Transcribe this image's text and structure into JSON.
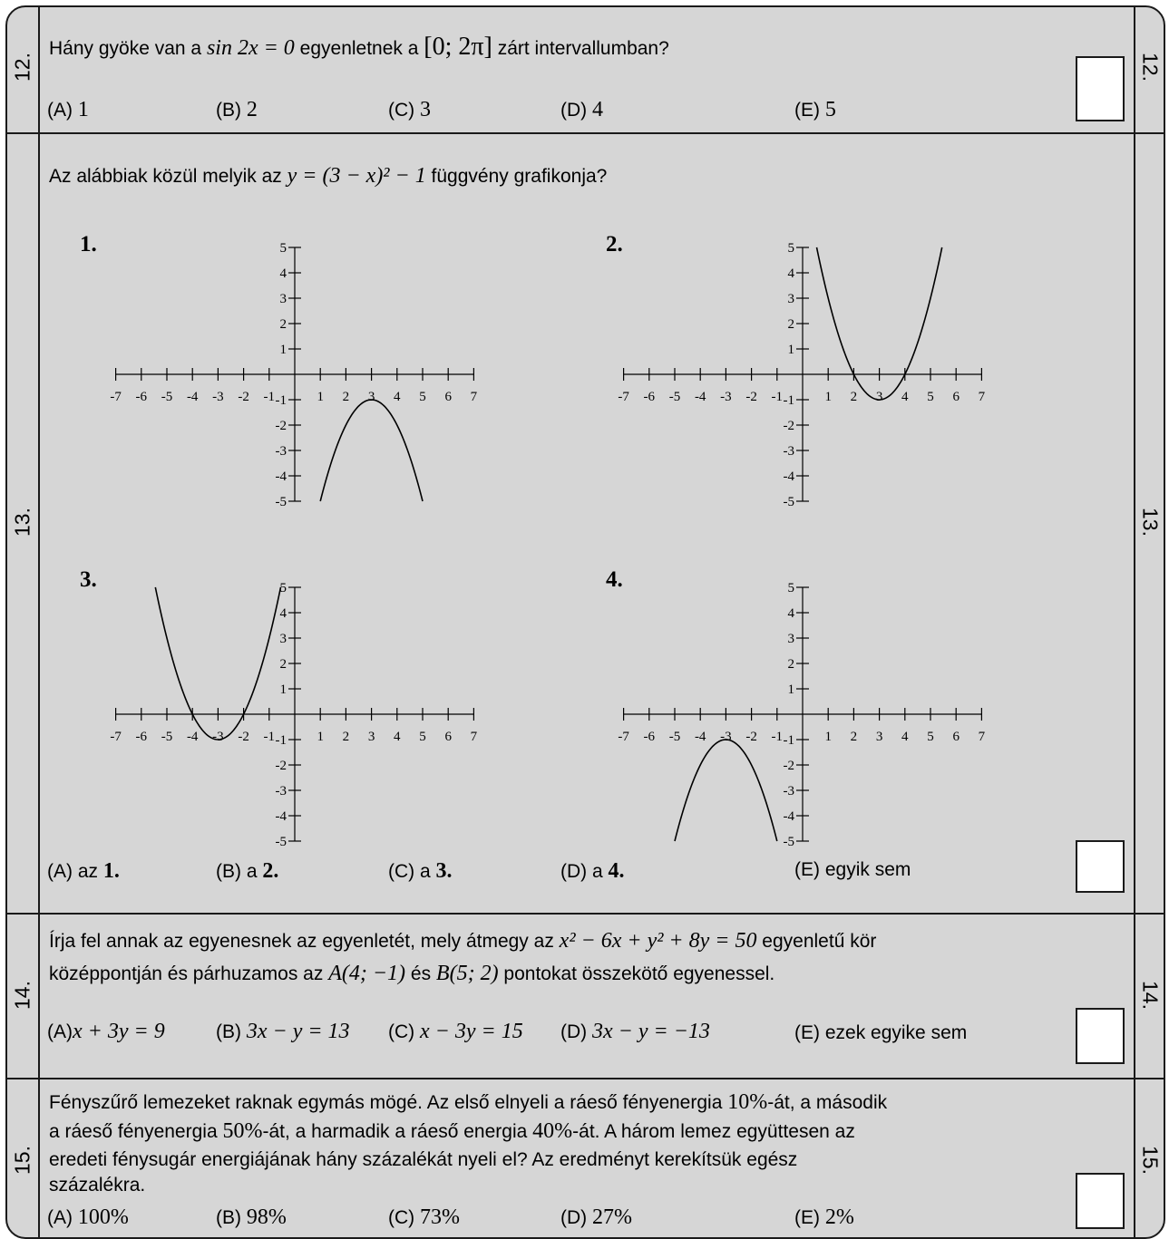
{
  "q12": {
    "number": "12.",
    "text_a": "Hány gyöke van a",
    "eq": "sin 2x = 0",
    "text_b": "egyenletnek a",
    "interval": "[0; 2π]",
    "text_c": "zárt intervallumban?",
    "options": [
      {
        "letter": "(A)",
        "value": "1"
      },
      {
        "letter": "(B)",
        "value": "2"
      },
      {
        "letter": "(C)",
        "value": "3"
      },
      {
        "letter": "(D)",
        "value": "4"
      },
      {
        "letter": "(E)",
        "value": "5"
      }
    ]
  },
  "q13": {
    "number": "13.",
    "text_a": "Az alábbiak közül melyik az",
    "eq": "y = (3 − x)² − 1",
    "text_b": "függvény grafikonja?",
    "graph_labels": [
      "1.",
      "2.",
      "3.",
      "4."
    ],
    "options": [
      {
        "letter": "(A)",
        "prefix": "az",
        "value": "1."
      },
      {
        "letter": "(B)",
        "prefix": "a",
        "value": "2."
      },
      {
        "letter": "(C)",
        "prefix": "a",
        "value": "3."
      },
      {
        "letter": "(D)",
        "prefix": "a",
        "value": "4."
      },
      {
        "letter": "(E)",
        "prefix": "egyik sem",
        "value": ""
      }
    ]
  },
  "q14": {
    "number": "14.",
    "line1_a": "Írja fel annak az egyenesnek az egyenletét, mely átmegy az",
    "circle_eq": "x² − 6x + y² + 8y = 50",
    "line1_b": "egyenletű kör",
    "line2_a": "középpontján és párhuzamos az",
    "pointA": "A(4; −1)",
    "line2_b": "és",
    "pointB": "B(5; 2)",
    "line2_c": "pontokat összekötő egyenessel.",
    "options": [
      {
        "letter": "(A)",
        "value": "x + 3y = 9"
      },
      {
        "letter": "(B)",
        "value": "3x − y = 13"
      },
      {
        "letter": "(C)",
        "value": "x − 3y = 15"
      },
      {
        "letter": "(D)",
        "value": "3x − y = −13"
      },
      {
        "letter": "(E)",
        "value": "ezek egyike sem"
      }
    ]
  },
  "q15": {
    "number": "15.",
    "line1_a": "Fényszűrő lemezeket raknak egymás mögé. Az első elnyeli a ráeső fényenergia",
    "p1": "10%",
    "line1_b": "-át, a második",
    "line2_a": "a ráeső fényenergia",
    "p2": "50%",
    "line2_b": "-át, a harmadik a ráeső energia",
    "p3": "40%",
    "line2_c": "-át. A három lemez együttesen az",
    "line3": "eredeti fénysugár energiájának hány százalékát nyeli el? Az eredményt kerekítsük egész",
    "line4": "százalékra.",
    "options": [
      {
        "letter": "(A)",
        "value": "100%"
      },
      {
        "letter": "(B)",
        "value": "98%"
      },
      {
        "letter": "(C)",
        "value": "73%"
      },
      {
        "letter": "(D)",
        "value": "27%"
      },
      {
        "letter": "(E)",
        "value": "2%"
      }
    ]
  },
  "chart_data": [
    {
      "type": "line",
      "label": "1.",
      "function": "y = -(x - 3)^2 - 1",
      "x_range": [
        1,
        5
      ],
      "vertex": [
        3,
        -1
      ],
      "xlim": [
        -7,
        7
      ],
      "ylim": [
        -5,
        5
      ],
      "x_ticks": [
        "-7",
        "-6",
        "-5",
        "-4",
        "-3",
        "-2",
        "-1",
        "1",
        "2",
        "3",
        "4",
        "5",
        "6",
        "7"
      ],
      "y_ticks": [
        "5",
        "4",
        "3",
        "2",
        "1",
        "-1",
        "-2",
        "-3",
        "-4",
        "-5"
      ]
    },
    {
      "type": "line",
      "label": "2.",
      "function": "y = (x - 3)^2 - 1",
      "x_range": [
        0.55,
        5.45
      ],
      "vertex": [
        3,
        -1
      ],
      "xlim": [
        -7,
        7
      ],
      "ylim": [
        -5,
        5
      ],
      "x_ticks": [
        "-7",
        "-6",
        "-5",
        "-4",
        "-3",
        "-2",
        "-1",
        "1",
        "2",
        "3",
        "4",
        "5",
        "6",
        "7"
      ],
      "y_ticks": [
        "5",
        "4",
        "3",
        "2",
        "1",
        "-1",
        "-2",
        "-3",
        "-4",
        "-5"
      ]
    },
    {
      "type": "line",
      "label": "3.",
      "function": "y = (x + 3)^2 - 1",
      "x_range": [
        -5.45,
        -0.55
      ],
      "vertex": [
        -3,
        -1
      ],
      "xlim": [
        -7,
        7
      ],
      "ylim": [
        -5,
        5
      ],
      "x_ticks": [
        "-7",
        "-6",
        "-5",
        "-4",
        "-3",
        "-2",
        "-1",
        "1",
        "2",
        "3",
        "4",
        "5",
        "6",
        "7"
      ],
      "y_ticks": [
        "5",
        "4",
        "3",
        "2",
        "1",
        "-1",
        "-2",
        "-3",
        "-4",
        "-5"
      ]
    },
    {
      "type": "line",
      "label": "4.",
      "function": "y = -(x + 3)^2 - 1",
      "x_range": [
        -5,
        -1
      ],
      "vertex": [
        -3,
        -1
      ],
      "xlim": [
        -7,
        7
      ],
      "ylim": [
        -5,
        5
      ],
      "x_ticks": [
        "-7",
        "-6",
        "-5",
        "-4",
        "-3",
        "-2",
        "-1",
        "1",
        "2",
        "3",
        "4",
        "5",
        "6",
        "7"
      ],
      "y_ticks": [
        "5",
        "4",
        "3",
        "2",
        "1",
        "-1",
        "-2",
        "-3",
        "-4",
        "-5"
      ]
    }
  ]
}
